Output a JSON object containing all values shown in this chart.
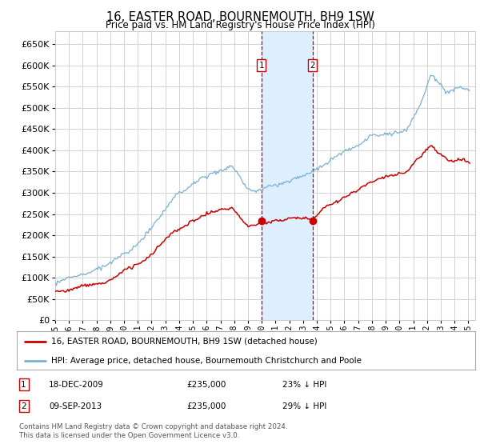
{
  "title": "16, EASTER ROAD, BOURNEMOUTH, BH9 1SW",
  "subtitle": "Price paid vs. HM Land Registry's House Price Index (HPI)",
  "ylabel_ticks": [
    0,
    50000,
    100000,
    150000,
    200000,
    250000,
    300000,
    350000,
    400000,
    450000,
    500000,
    550000,
    600000,
    650000
  ],
  "ylim": [
    0,
    680000
  ],
  "xlim_start": 1995.0,
  "xlim_end": 2025.5,
  "transaction1_date": 2009.96,
  "transaction1_value": 235000,
  "transaction2_date": 2013.69,
  "transaction2_value": 235000,
  "red_line_color": "#cc0000",
  "blue_line_color": "#7ab0d4",
  "shade_color": "#ddeeff",
  "dashed_line_color": "#cc0000",
  "grid_color": "#cccccc",
  "legend_line1": "16, EASTER ROAD, BOURNEMOUTH, BH9 1SW (detached house)",
  "legend_line2": "HPI: Average price, detached house, Bournemouth Christchurch and Poole",
  "footer": "Contains HM Land Registry data © Crown copyright and database right 2024.\nThis data is licensed under the Open Government Licence v3.0.",
  "background_color": "#ffffff"
}
